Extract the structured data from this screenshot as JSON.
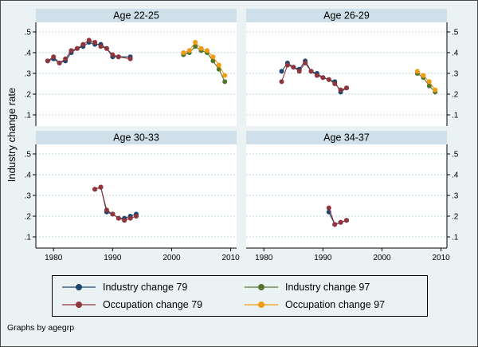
{
  "figure": {
    "ylabel": "Industry change rate",
    "note": "Graphs by agegrp",
    "background": "#eaf2f3",
    "strip_color": "#cfe0ea",
    "gridline_color": "#bdd7e1"
  },
  "colors": {
    "industry79": "#1a476f",
    "occupation79": "#90353b",
    "industry97": "#55752f",
    "occupation97": "#ef9b13"
  },
  "legend": {
    "items": [
      {
        "label": "Industry change 79",
        "color_key": "industry79"
      },
      {
        "label": "Industry change 97",
        "color_key": "industry97"
      },
      {
        "label": "Occupation change 79",
        "color_key": "occupation79"
      },
      {
        "label": "Occupation change 97",
        "color_key": "occupation97"
      }
    ]
  },
  "axes": {
    "x_range": [
      1977,
      2011
    ],
    "x_ticks": [
      1980,
      1990,
      2000,
      2010
    ],
    "y_ticks": [
      0.1,
      0.2,
      0.3,
      0.4,
      0.5
    ],
    "y_tick_labels": [
      ".1",
      ".2",
      ".3",
      ".4",
      ".5"
    ],
    "ylim": [
      0.1,
      0.5
    ]
  },
  "chart_data": [
    {
      "type": "line",
      "title": "Age 22-25",
      "xlabel": "",
      "ylabel": "Industry change rate",
      "series": [
        {
          "name": "Industry change 79",
          "color_key": "industry79",
          "x": [
            1979,
            1980,
            1981,
            1982,
            1983,
            1984,
            1985,
            1986,
            1987,
            1988,
            1989,
            1990,
            1991,
            1993
          ],
          "y": [
            0.36,
            0.37,
            0.35,
            0.36,
            0.4,
            0.42,
            0.43,
            0.45,
            0.44,
            0.44,
            0.42,
            0.38,
            0.38,
            0.38
          ]
        },
        {
          "name": "Occupation change 79",
          "color_key": "occupation79",
          "x": [
            1979,
            1980,
            1981,
            1982,
            1983,
            1984,
            1985,
            1986,
            1987,
            1988,
            1989,
            1990,
            1991,
            1993
          ],
          "y": [
            0.36,
            0.38,
            0.35,
            0.37,
            0.41,
            0.42,
            0.44,
            0.46,
            0.45,
            0.43,
            0.42,
            0.39,
            0.38,
            0.37
          ]
        },
        {
          "name": "Industry change 97",
          "color_key": "industry97",
          "x": [
            2002,
            2003,
            2004,
            2005,
            2006,
            2007,
            2008,
            2009
          ],
          "y": [
            0.39,
            0.4,
            0.43,
            0.41,
            0.4,
            0.36,
            0.32,
            0.26
          ]
        },
        {
          "name": "Occupation change 97",
          "color_key": "occupation97",
          "x": [
            2002,
            2003,
            2004,
            2005,
            2006,
            2007,
            2008,
            2009
          ],
          "y": [
            0.4,
            0.41,
            0.45,
            0.42,
            0.41,
            0.38,
            0.34,
            0.29
          ]
        }
      ]
    },
    {
      "type": "line",
      "title": "Age 26-29",
      "xlabel": "",
      "ylabel": "Industry change rate",
      "series": [
        {
          "name": "Industry change 79",
          "color_key": "industry79",
          "x": [
            1983,
            1984,
            1985,
            1986,
            1987,
            1988,
            1989,
            1990,
            1991,
            1992,
            1993,
            1994
          ],
          "y": [
            0.31,
            0.35,
            0.33,
            0.32,
            0.36,
            0.31,
            0.3,
            0.28,
            0.27,
            0.26,
            0.21,
            0.23
          ]
        },
        {
          "name": "Occupation change 79",
          "color_key": "occupation79",
          "x": [
            1983,
            1984,
            1985,
            1986,
            1987,
            1988,
            1989,
            1990,
            1991,
            1992,
            1993,
            1994
          ],
          "y": [
            0.26,
            0.34,
            0.33,
            0.31,
            0.35,
            0.31,
            0.29,
            0.28,
            0.27,
            0.25,
            0.22,
            0.23
          ]
        },
        {
          "name": "Industry change 97",
          "color_key": "industry97",
          "x": [
            2006,
            2007,
            2008,
            2009
          ],
          "y": [
            0.3,
            0.28,
            0.24,
            0.21
          ]
        },
        {
          "name": "Occupation change 97",
          "color_key": "occupation97",
          "x": [
            2006,
            2007,
            2008,
            2009
          ],
          "y": [
            0.31,
            0.29,
            0.26,
            0.22
          ]
        }
      ]
    },
    {
      "type": "line",
      "title": "Age 30-33",
      "xlabel": "",
      "ylabel": "Industry change rate",
      "series": [
        {
          "name": "Industry change 79",
          "color_key": "industry79",
          "x": [
            1987,
            1988,
            1989,
            1990,
            1991,
            1992,
            1993,
            1994
          ],
          "y": [
            0.33,
            0.34,
            0.22,
            0.21,
            0.19,
            0.19,
            0.2,
            0.21
          ]
        },
        {
          "name": "Occupation change 79",
          "color_key": "occupation79",
          "x": [
            1987,
            1988,
            1989,
            1990,
            1991,
            1992,
            1993,
            1994
          ],
          "y": [
            0.33,
            0.34,
            0.23,
            0.21,
            0.19,
            0.18,
            0.19,
            0.2
          ]
        }
      ]
    },
    {
      "type": "line",
      "title": "Age 34-37",
      "xlabel": "",
      "ylabel": "Industry change rate",
      "series": [
        {
          "name": "Industry change 79",
          "color_key": "industry79",
          "x": [
            1991,
            1992,
            1993,
            1994
          ],
          "y": [
            0.22,
            0.16,
            0.17,
            0.18
          ]
        },
        {
          "name": "Occupation change 79",
          "color_key": "occupation79",
          "x": [
            1991,
            1992,
            1993,
            1994
          ],
          "y": [
            0.24,
            0.16,
            0.17,
            0.18
          ]
        }
      ]
    }
  ]
}
